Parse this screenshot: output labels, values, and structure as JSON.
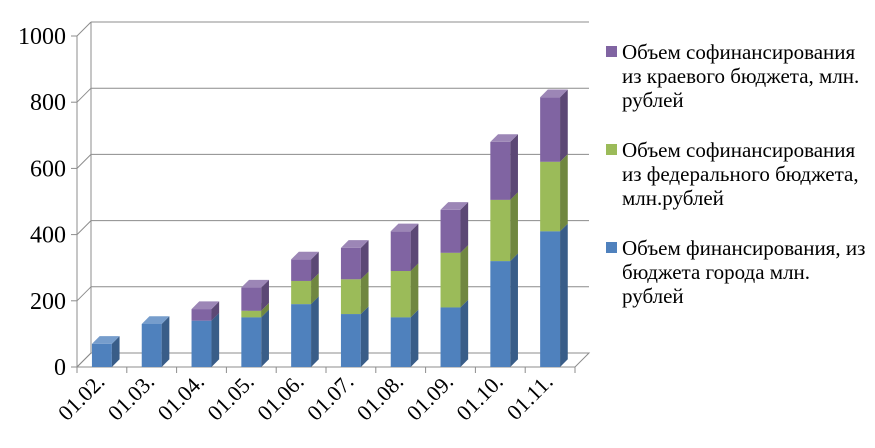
{
  "chart_data": {
    "type": "bar",
    "stacked": true,
    "three_d": true,
    "title": "",
    "categories": [
      "01.02.",
      "01.03.",
      "01.04.",
      "01.05.",
      "01.06.",
      "01.07.",
      "01.08.",
      "01.09.",
      "01.10.",
      "01.11."
    ],
    "series": [
      {
        "name": "Объем финансирования, из бюджета города млн. рублей",
        "color": "#4f81bd",
        "values": [
          70,
          130,
          140,
          150,
          190,
          160,
          150,
          180,
          320,
          410
        ]
      },
      {
        "name": "Объем софинансирования из федерального бюджета, млн.рублей",
        "color": "#9bbb59",
        "values": [
          0,
          0,
          0,
          20,
          70,
          105,
          140,
          165,
          185,
          210
        ]
      },
      {
        "name": "Объем софинансирования из краевого бюджета, млн. рублей",
        "color": "#8064a2",
        "values": [
          0,
          0,
          35,
          70,
          65,
          95,
          120,
          130,
          175,
          195
        ]
      }
    ],
    "ylim": [
      0,
      1000
    ],
    "yticks": [
      0,
      200,
      400,
      600,
      800,
      1000
    ],
    "grid": true,
    "legend_position": "right"
  }
}
